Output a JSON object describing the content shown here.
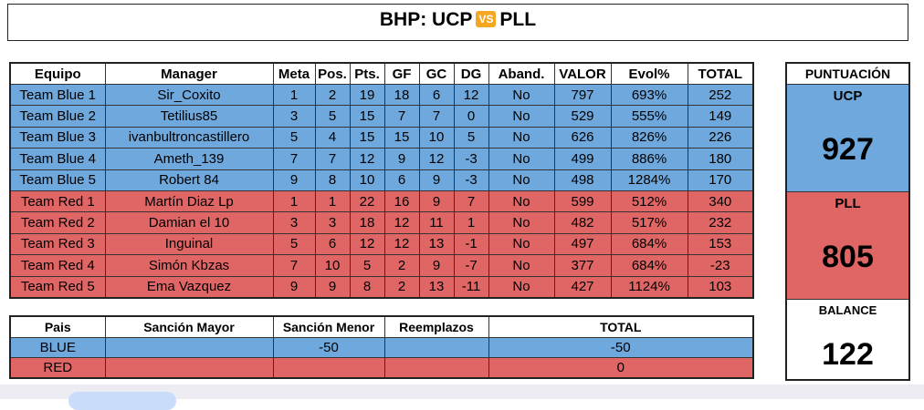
{
  "header": {
    "title_left": "BHP: UCP",
    "badge": "VS",
    "title_right": "PLL"
  },
  "table": {
    "columns": [
      "Equipo",
      "Manager",
      "Meta",
      "Pos.",
      "Pts.",
      "GF",
      "GC",
      "DG",
      "Aband.",
      "VALOR",
      "Evol%",
      "TOTAL"
    ],
    "rows": [
      [
        "Team Blue 1",
        "Sir_Coxito",
        1,
        2,
        19,
        18,
        6,
        12,
        "No",
        797,
        "693%",
        252
      ],
      [
        "Team Blue 2",
        "Tetilius85",
        3,
        5,
        15,
        7,
        7,
        0,
        "No",
        529,
        "555%",
        149
      ],
      [
        "Team Blue 3",
        "ivanbultroncastillero",
        5,
        4,
        15,
        15,
        10,
        5,
        "No",
        626,
        "826%",
        226
      ],
      [
        "Team Blue 4",
        "Ameth_139",
        7,
        7,
        12,
        9,
        12,
        -3,
        "No",
        499,
        "886%",
        180
      ],
      [
        "Team Blue 5",
        "Robert 84",
        9,
        8,
        10,
        6,
        9,
        -3,
        "No",
        498,
        "1284%",
        170
      ],
      [
        "Team Red 1",
        "Martín Diaz Lp",
        1,
        1,
        22,
        16,
        9,
        7,
        "No",
        599,
        "512%",
        340
      ],
      [
        "Team Red 2",
        "Damian el 10",
        3,
        3,
        18,
        12,
        11,
        1,
        "No",
        482,
        "517%",
        232
      ],
      [
        "Team Red 3",
        "Inguinal",
        5,
        6,
        12,
        12,
        13,
        -1,
        "No",
        497,
        "684%",
        153
      ],
      [
        "Team Red 4",
        "Simón Kbzas",
        7,
        10,
        5,
        2,
        9,
        -7,
        "No",
        377,
        "684%",
        -23
      ],
      [
        "Team Red 5",
        "Ema Vazquez",
        9,
        9,
        8,
        2,
        13,
        -11,
        "No",
        427,
        "1124%",
        103
      ]
    ]
  },
  "summary": {
    "columns": [
      "Pais",
      "Sanción Mayor",
      "Sanción Menor",
      "Reemplazos",
      "TOTAL"
    ],
    "rows": [
      [
        "BLUE",
        null,
        -50,
        null,
        -50
      ],
      [
        "RED",
        null,
        null,
        null,
        0
      ]
    ]
  },
  "score": {
    "title": "PUNTUACIÓN",
    "teams": [
      {
        "name": "UCP",
        "points": 927
      },
      {
        "name": "PLL",
        "points": 805
      }
    ],
    "balance_label": "BALANCE",
    "balance": 122
  }
}
